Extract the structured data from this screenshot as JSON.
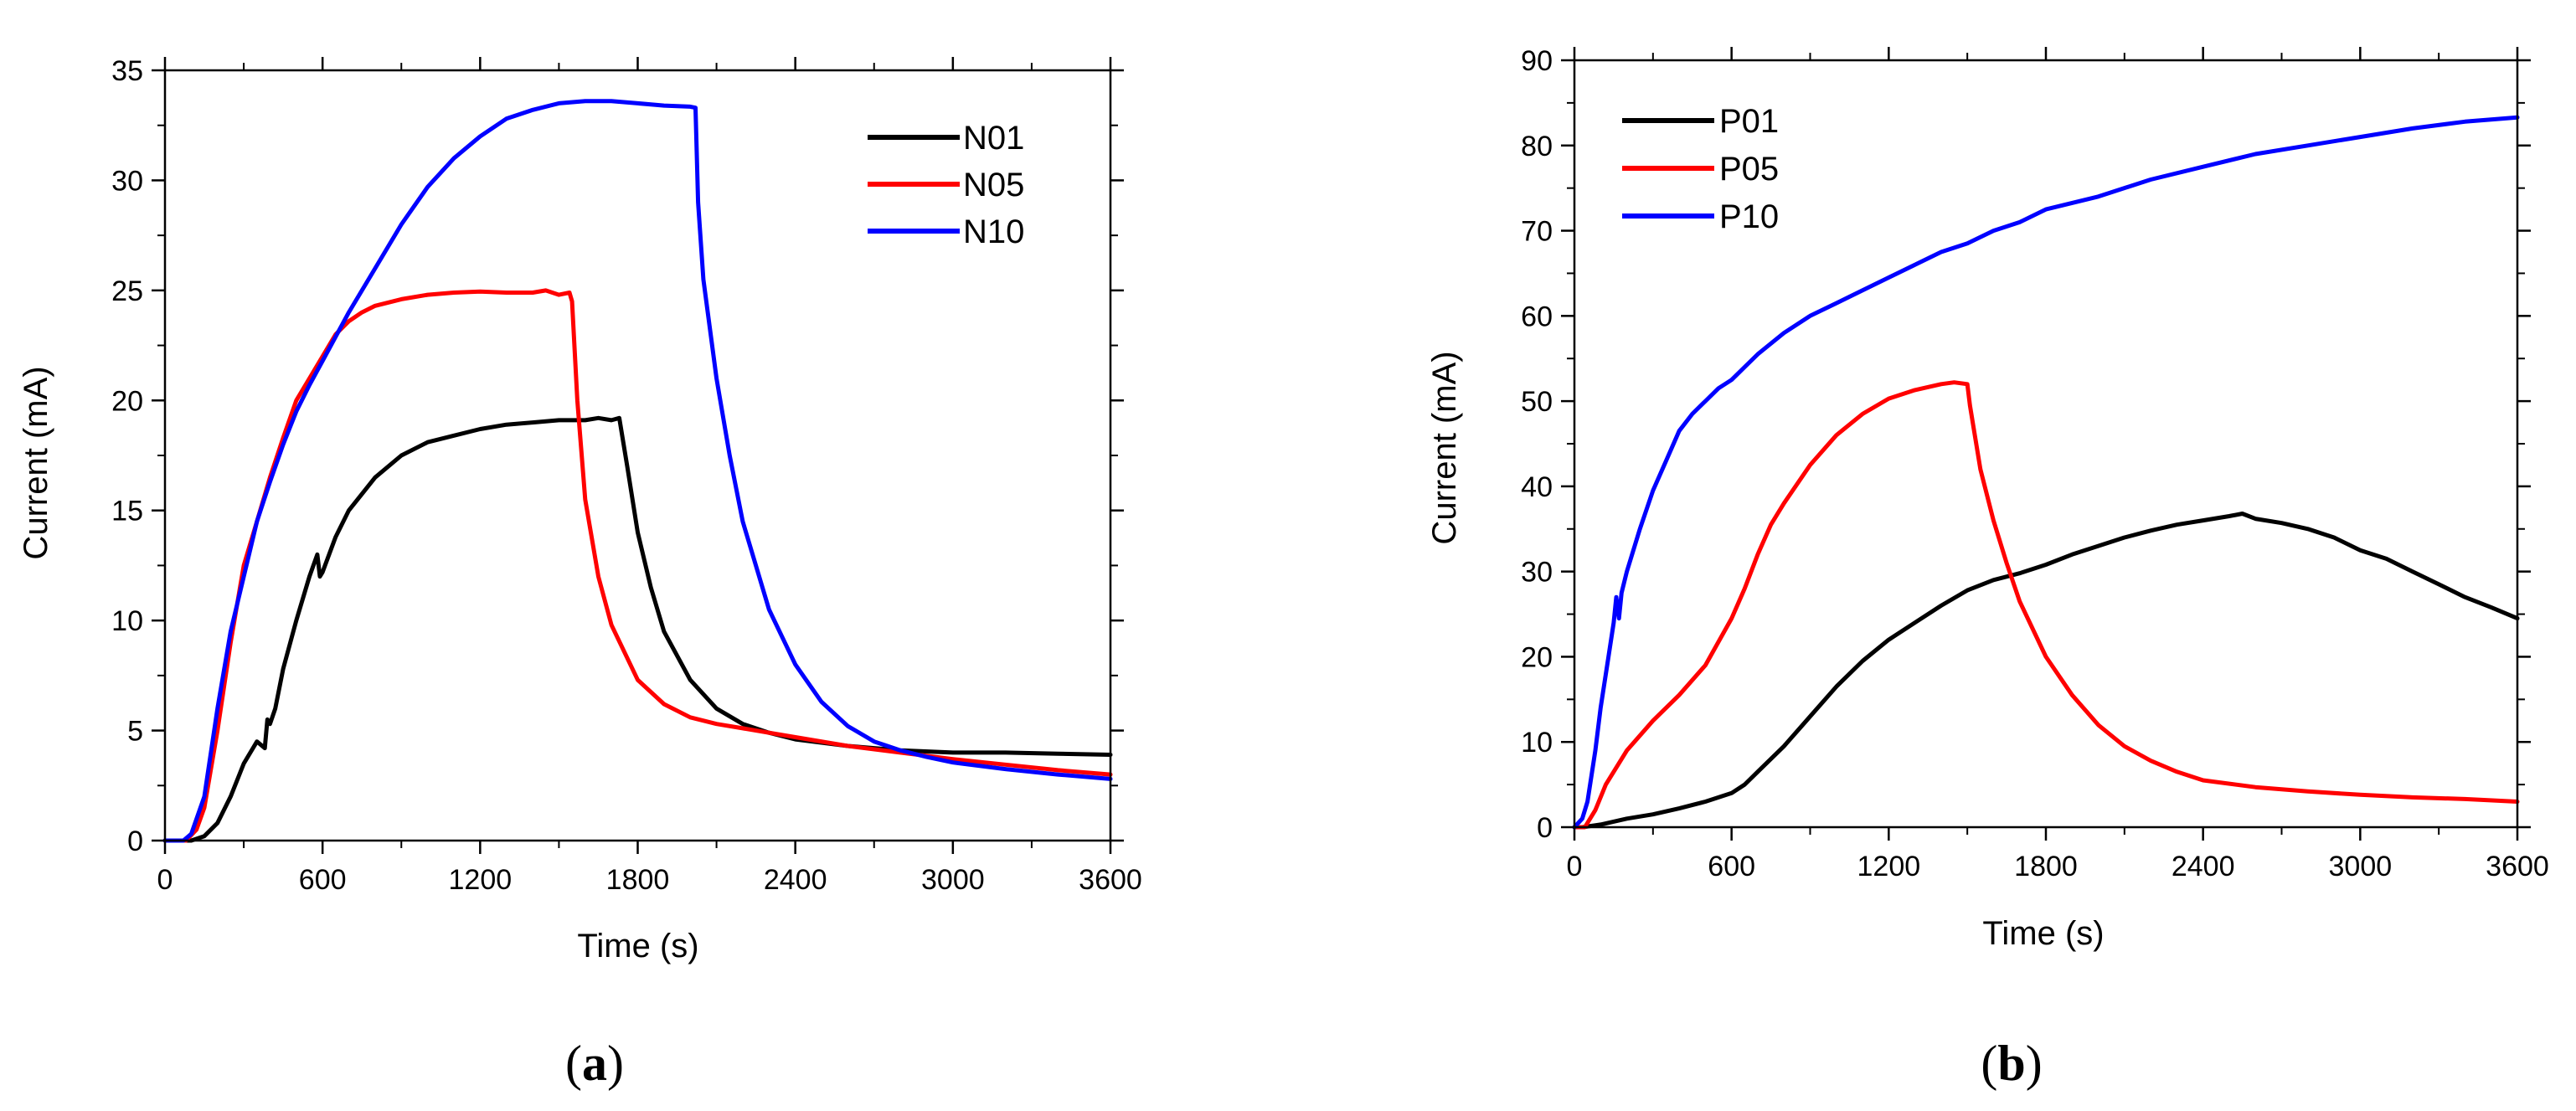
{
  "chart_data": [
    {
      "type": "line",
      "panel_label": {
        "open": "(",
        "letter": "a",
        "close": ")"
      },
      "xlabel": "Time (s)",
      "ylabel": "Current (mA)",
      "xlim": [
        0,
        3600
      ],
      "ylim": [
        0,
        35
      ],
      "xticks": [
        0,
        600,
        1200,
        1800,
        2400,
        3000,
        3600
      ],
      "yticks": [
        0,
        5,
        10,
        15,
        20,
        25,
        30,
        35
      ],
      "grid": false,
      "legend_position": "top-right",
      "series": [
        {
          "name": "N01",
          "color": "#000000",
          "x": [
            0,
            100,
            150,
            200,
            250,
            300,
            350,
            380,
            390,
            400,
            420,
            450,
            500,
            550,
            580,
            590,
            600,
            650,
            700,
            800,
            900,
            1000,
            1100,
            1200,
            1300,
            1400,
            1500,
            1600,
            1650,
            1700,
            1730,
            1760,
            1800,
            1850,
            1900,
            2000,
            2100,
            2200,
            2300,
            2400,
            2600,
            2800,
            3000,
            3200,
            3400,
            3600
          ],
          "values": [
            0,
            0,
            0.2,
            0.8,
            2.0,
            3.5,
            4.5,
            4.2,
            5.5,
            5.3,
            6.0,
            7.8,
            10.0,
            12.0,
            13.0,
            12.0,
            12.2,
            13.8,
            15.0,
            16.5,
            17.5,
            18.1,
            18.4,
            18.7,
            18.9,
            19.0,
            19.1,
            19.1,
            19.2,
            19.1,
            19.2,
            17.0,
            14.0,
            11.5,
            9.5,
            7.3,
            6.0,
            5.3,
            4.9,
            4.6,
            4.3,
            4.1,
            4.0,
            4.0,
            3.95,
            3.9
          ]
        },
        {
          "name": "N05",
          "color": "#ff0000",
          "x": [
            0,
            80,
            120,
            150,
            200,
            250,
            300,
            350,
            400,
            450,
            500,
            550,
            600,
            650,
            700,
            750,
            800,
            900,
            1000,
            1100,
            1200,
            1300,
            1400,
            1450,
            1500,
            1540,
            1550,
            1570,
            1600,
            1650,
            1700,
            1800,
            1900,
            2000,
            2100,
            2200,
            2400,
            2600,
            2800,
            3000,
            3200,
            3400,
            3600
          ],
          "values": [
            0,
            0,
            0.5,
            1.5,
            5.0,
            9.0,
            12.5,
            14.5,
            16.5,
            18.3,
            20.0,
            21.0,
            22.0,
            23.0,
            23.6,
            24.0,
            24.3,
            24.6,
            24.8,
            24.9,
            24.95,
            24.9,
            24.9,
            25.0,
            24.8,
            24.9,
            24.5,
            20.0,
            15.5,
            12.0,
            9.8,
            7.3,
            6.2,
            5.6,
            5.3,
            5.1,
            4.7,
            4.3,
            4.0,
            3.7,
            3.45,
            3.2,
            3.0
          ]
        },
        {
          "name": "N10",
          "color": "#0000ff",
          "x": [
            0,
            70,
            100,
            150,
            200,
            250,
            300,
            350,
            400,
            450,
            500,
            550,
            600,
            700,
            800,
            900,
            1000,
            1100,
            1200,
            1300,
            1400,
            1500,
            1600,
            1700,
            1800,
            1900,
            2000,
            2020,
            2030,
            2050,
            2100,
            2150,
            2200,
            2300,
            2400,
            2500,
            2600,
            2700,
            2800,
            2900,
            3000,
            3200,
            3400,
            3600
          ],
          "values": [
            0,
            0,
            0.3,
            2.0,
            6.0,
            9.5,
            12.0,
            14.5,
            16.3,
            18.0,
            19.5,
            20.7,
            21.8,
            24.0,
            26.0,
            28.0,
            29.7,
            31.0,
            32.0,
            32.8,
            33.2,
            33.5,
            33.6,
            33.6,
            33.5,
            33.4,
            33.35,
            33.3,
            29.0,
            25.5,
            21.0,
            17.5,
            14.5,
            10.5,
            8.0,
            6.3,
            5.2,
            4.5,
            4.1,
            3.8,
            3.55,
            3.25,
            3.0,
            2.8
          ]
        }
      ]
    },
    {
      "type": "line",
      "panel_label": {
        "open": "(",
        "letter": "b",
        "close": ")"
      },
      "xlabel": "Time (s)",
      "ylabel": "Current (mA)",
      "xlim": [
        0,
        3600
      ],
      "ylim": [
        0,
        90
      ],
      "xticks": [
        0,
        600,
        1200,
        1800,
        2400,
        3000,
        3600
      ],
      "yticks": [
        0,
        10,
        20,
        30,
        40,
        50,
        60,
        70,
        80,
        90
      ],
      "grid": false,
      "legend_position": "top-left",
      "series": [
        {
          "name": "P01",
          "color": "#000000",
          "x": [
            0,
            30,
            100,
            200,
            300,
            400,
            500,
            600,
            650,
            700,
            800,
            900,
            1000,
            1100,
            1200,
            1300,
            1400,
            1500,
            1600,
            1700,
            1800,
            1900,
            2000,
            2100,
            2200,
            2300,
            2400,
            2500,
            2550,
            2600,
            2700,
            2800,
            2900,
            3000,
            3100,
            3200,
            3300,
            3400,
            3500,
            3600
          ],
          "values": [
            0,
            0,
            0.3,
            1.0,
            1.5,
            2.2,
            3.0,
            4.0,
            5.0,
            6.5,
            9.5,
            13.0,
            16.5,
            19.5,
            22.0,
            24.0,
            26.0,
            27.8,
            29.0,
            29.8,
            30.8,
            32.0,
            33.0,
            34.0,
            34.8,
            35.5,
            36.0,
            36.5,
            36.8,
            36.2,
            35.7,
            35.0,
            34.0,
            32.5,
            31.5,
            30.0,
            28.5,
            27.0,
            25.8,
            24.5
          ]
        },
        {
          "name": "P05",
          "color": "#ff0000",
          "x": [
            0,
            40,
            80,
            120,
            200,
            300,
            400,
            500,
            600,
            650,
            700,
            750,
            800,
            900,
            1000,
            1100,
            1200,
            1300,
            1400,
            1450,
            1500,
            1510,
            1550,
            1600,
            1650,
            1700,
            1800,
            1900,
            2000,
            2100,
            2200,
            2300,
            2400,
            2600,
            2800,
            3000,
            3200,
            3400,
            3600
          ],
          "values": [
            0,
            0,
            2.0,
            5.0,
            9.0,
            12.5,
            15.5,
            19.0,
            24.5,
            28.0,
            32.0,
            35.5,
            38.0,
            42.5,
            46.0,
            48.5,
            50.3,
            51.3,
            52.0,
            52.2,
            52.0,
            49.5,
            42.0,
            36.0,
            31.0,
            26.5,
            20.0,
            15.5,
            12.0,
            9.5,
            7.8,
            6.5,
            5.5,
            4.7,
            4.2,
            3.8,
            3.5,
            3.3,
            3.0
          ]
        },
        {
          "name": "P10",
          "color": "#0000ff",
          "x": [
            0,
            30,
            50,
            80,
            100,
            130,
            150,
            160,
            170,
            180,
            200,
            250,
            300,
            350,
            400,
            450,
            500,
            550,
            600,
            650,
            700,
            800,
            900,
            1000,
            1100,
            1200,
            1300,
            1400,
            1500,
            1600,
            1700,
            1800,
            2000,
            2200,
            2400,
            2600,
            2800,
            3000,
            3200,
            3400,
            3600
          ],
          "values": [
            0,
            1.0,
            3.0,
            9.0,
            14.0,
            20.0,
            24.0,
            27.0,
            24.5,
            27.5,
            30.0,
            35.0,
            39.5,
            43.0,
            46.5,
            48.5,
            50.0,
            51.5,
            52.5,
            54.0,
            55.5,
            58.0,
            60.0,
            61.5,
            63.0,
            64.5,
            66.0,
            67.5,
            68.5,
            70.0,
            71.0,
            72.5,
            74.0,
            76.0,
            77.5,
            79.0,
            80.0,
            81.0,
            82.0,
            82.8,
            83.3
          ]
        }
      ]
    }
  ]
}
